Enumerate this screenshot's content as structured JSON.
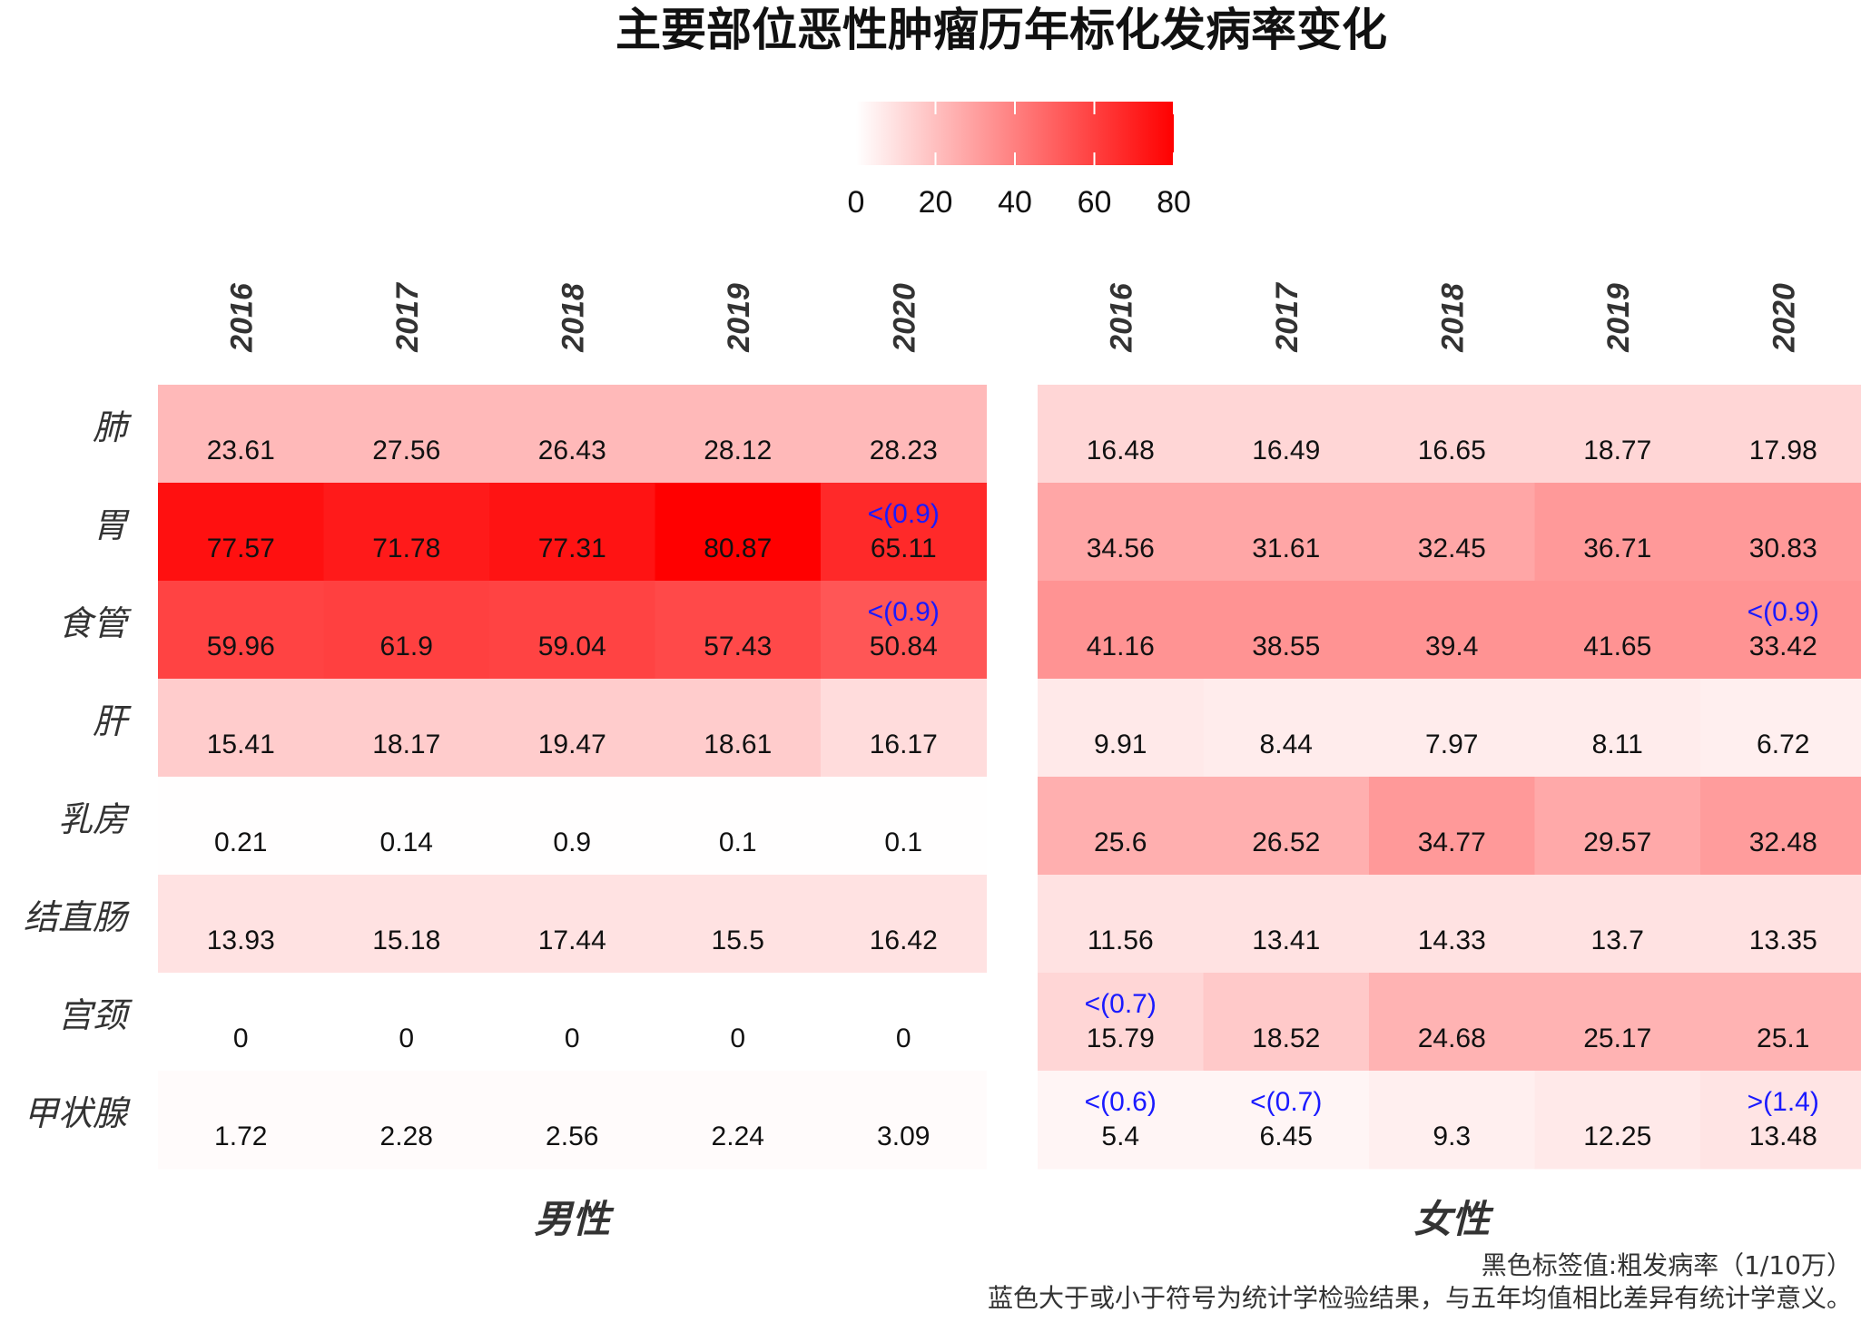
{
  "chart_data": {
    "type": "heatmap",
    "title": "主要部位恶性肿瘤历年标化发病率变化",
    "legend": {
      "ticks": [
        "0",
        "20",
        "40",
        "60",
        "80"
      ],
      "range": [
        0,
        80
      ],
      "colors": [
        "#ffffff",
        "#ff0000"
      ]
    },
    "years": [
      "2016",
      "2017",
      "2018",
      "2019",
      "2020"
    ],
    "rows": [
      "肺",
      "胃",
      "食管",
      "肝",
      "乳房",
      "结直肠",
      "宫颈",
      "甲状腺"
    ],
    "panels": [
      {
        "name": "男性",
        "values": [
          [
            23.61,
            27.56,
            26.43,
            28.12,
            28.23
          ],
          [
            77.57,
            71.78,
            77.31,
            80.87,
            65.11
          ],
          [
            59.96,
            61.9,
            59.04,
            57.43,
            50.84
          ],
          [
            15.41,
            18.17,
            19.47,
            18.61,
            16.17
          ],
          [
            0.21,
            0.14,
            0.9,
            0.1,
            0.1
          ],
          [
            13.93,
            15.18,
            17.44,
            15.5,
            16.42
          ],
          [
            0,
            0,
            0,
            0,
            0
          ],
          [
            1.72,
            2.28,
            2.56,
            2.24,
            3.09
          ]
        ],
        "fill_values": [
          [
            22.0,
            22.0,
            22.0,
            22.0,
            22.0
          ],
          [
            75.0,
            72.0,
            74.0,
            80.0,
            67.0
          ],
          [
            59.0,
            60.0,
            59.0,
            57.0,
            53.0
          ],
          [
            16.0,
            16.0,
            16.0,
            16.0,
            11.0
          ],
          [
            0.3,
            0.3,
            0.3,
            0.3,
            0.3
          ],
          [
            9.0,
            9.0,
            9.0,
            9.0,
            9.0
          ],
          [
            0,
            0,
            0,
            0,
            0
          ],
          [
            1.2,
            1.2,
            1.2,
            1.2,
            1.2
          ]
        ],
        "sig": [
          [
            "",
            "",
            "",
            "",
            ""
          ],
          [
            "",
            "",
            "",
            "",
            "<(0.9)"
          ],
          [
            "",
            "",
            "",
            "",
            "<(0.9)"
          ],
          [
            "",
            "",
            "",
            "",
            ""
          ],
          [
            "",
            "",
            "",
            "",
            ""
          ],
          [
            "",
            "",
            "",
            "",
            ""
          ],
          [
            "",
            "",
            "",
            "",
            ""
          ],
          [
            "",
            "",
            "",
            "",
            ""
          ]
        ]
      },
      {
        "name": "女性",
        "values": [
          [
            16.48,
            16.49,
            16.65,
            18.77,
            17.98
          ],
          [
            34.56,
            31.61,
            32.45,
            36.71,
            30.83
          ],
          [
            41.16,
            38.55,
            39.4,
            41.65,
            33.42
          ],
          [
            9.91,
            8.44,
            7.97,
            8.11,
            6.72
          ],
          [
            25.6,
            26.52,
            34.77,
            29.57,
            32.48
          ],
          [
            11.56,
            13.41,
            14.33,
            13.7,
            13.35
          ],
          [
            15.79,
            18.52,
            24.68,
            25.17,
            25.1
          ],
          [
            5.4,
            6.45,
            9.3,
            12.25,
            13.48
          ]
        ],
        "fill_values": [
          [
            13.0,
            13.0,
            13.0,
            13.0,
            13.0
          ],
          [
            28.0,
            28.0,
            28.0,
            32.0,
            32.0
          ],
          [
            34.0,
            34.0,
            34.0,
            34.0,
            34.0
          ],
          [
            7.0,
            6.0,
            6.0,
            6.0,
            5.0
          ],
          [
            25.0,
            25.0,
            32.0,
            27.0,
            31.0
          ],
          [
            9.0,
            9.0,
            9.0,
            9.0,
            9.0
          ],
          [
            13.0,
            17.0,
            24.0,
            24.0,
            24.0
          ],
          [
            3.0,
            3.0,
            5.0,
            7.0,
            8.5
          ]
        ],
        "sig": [
          [
            "",
            "",
            "",
            "",
            ""
          ],
          [
            "",
            "",
            "",
            "",
            ""
          ],
          [
            "",
            "",
            "",
            "",
            "<(0.9)"
          ],
          [
            "",
            "",
            "",
            "",
            ""
          ],
          [
            "",
            "",
            "",
            "",
            ""
          ],
          [
            "",
            "",
            "",
            "",
            ""
          ],
          [
            "<(0.7)",
            "",
            "",
            "",
            ""
          ],
          [
            "<(0.6)",
            "<(0.7)",
            "",
            "",
            ">(1.4)"
          ]
        ]
      }
    ],
    "notes": [
      "黑色标签值:粗发病率（1/10万）",
      "蓝色大于或小于符号为统计学检验结果，与五年均值相比差异有统计学意义。"
    ]
  }
}
